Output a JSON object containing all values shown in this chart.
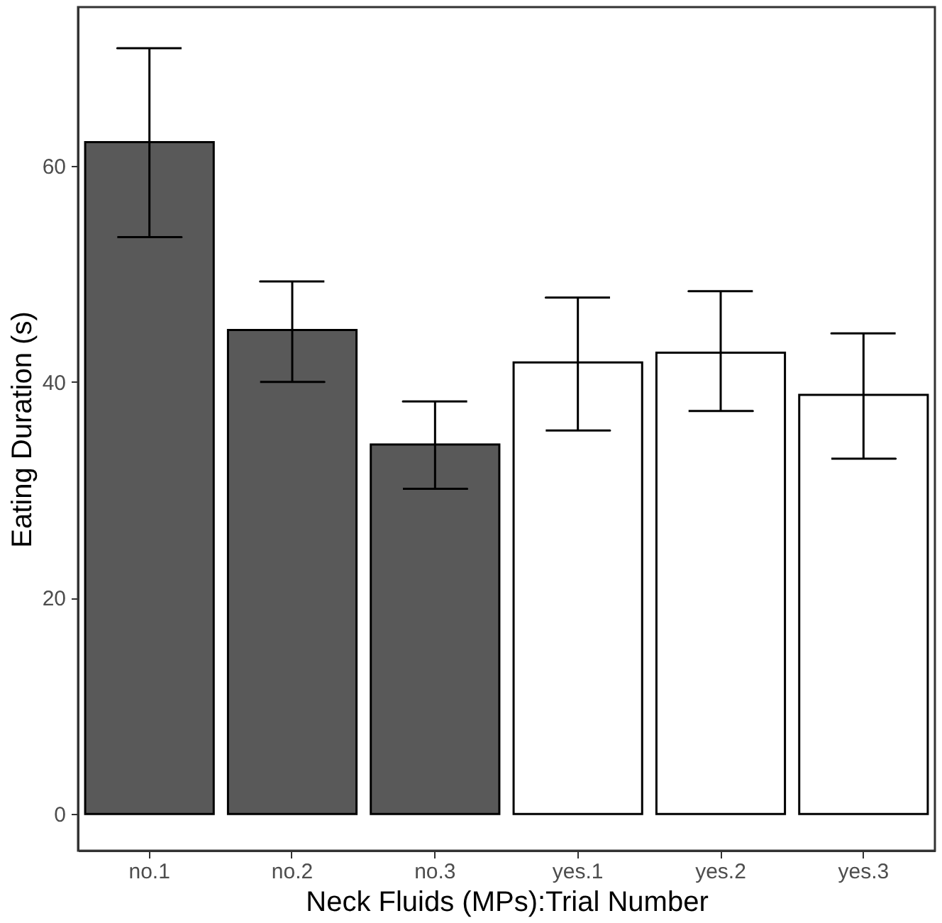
{
  "chart_data": {
    "type": "bar",
    "xlabel": "Neck Fluids (MPs):Trial Number",
    "ylabel": "Eating Duration (s)",
    "categories": [
      "no.1",
      "no.2",
      "no.3",
      "yes.1",
      "yes.2",
      "yes.3"
    ],
    "values": [
      62.2,
      44.8,
      34.2,
      41.8,
      42.7,
      38.8
    ],
    "colors": [
      "#595959",
      "#595959",
      "#595959",
      "#ffffff",
      "#ffffff",
      "#ffffff"
    ],
    "errors": [
      [
        53.4,
        70.9
      ],
      [
        40.0,
        49.3
      ],
      [
        30.1,
        38.2
      ],
      [
        35.5,
        47.8
      ],
      [
        37.3,
        48.4
      ],
      [
        32.9,
        44.5
      ]
    ],
    "ylim": [
      -3.4,
      74.7
    ],
    "yticks": [
      0,
      20,
      40,
      60
    ],
    "grid": false,
    "legend": false
  }
}
